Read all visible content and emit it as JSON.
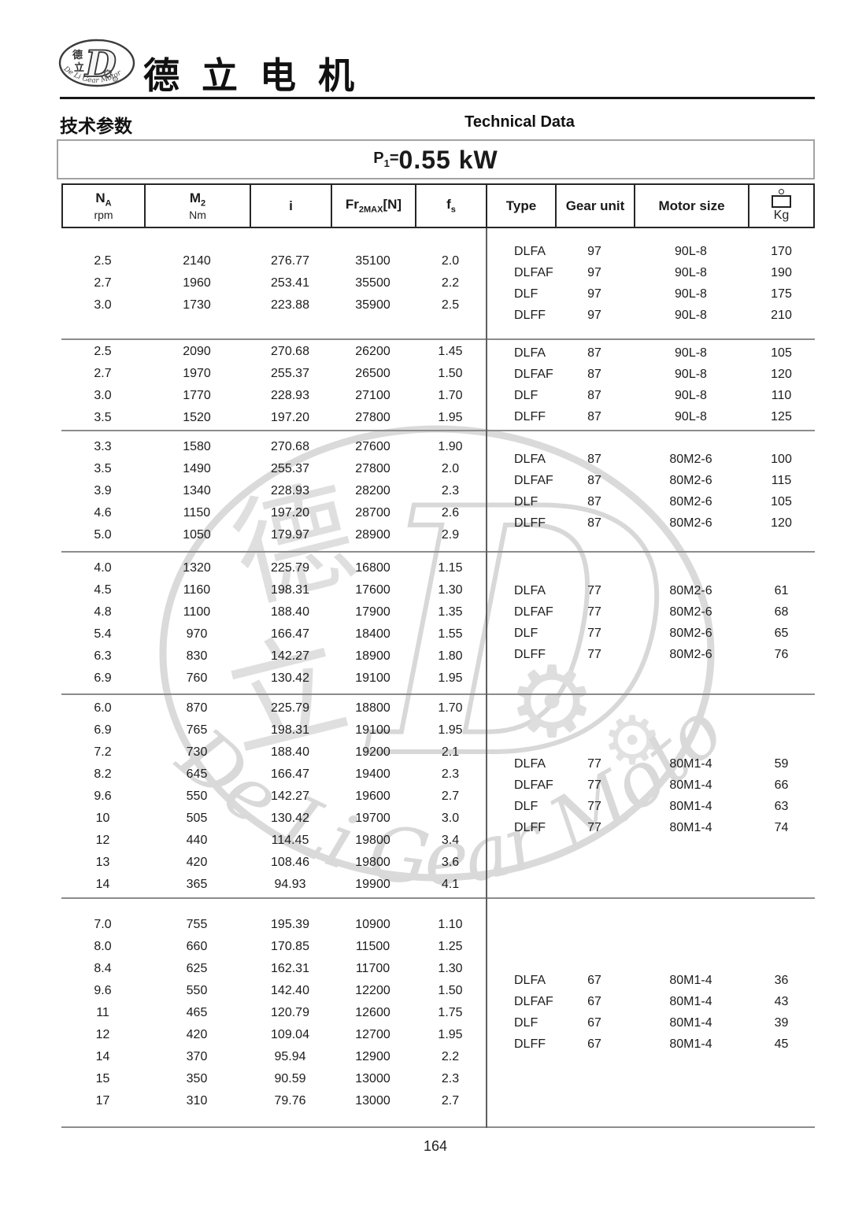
{
  "header": {
    "brand": "德立电机",
    "section_title_zh": "技术参数",
    "section_title_en": "Technical Data",
    "power": {
      "p": "P",
      "sub": "1",
      "eq": "=",
      "value": "0.55 kW"
    }
  },
  "logo": {
    "char_top": "德",
    "char_bottom": "立",
    "letter": "D",
    "gear_icon": "⚙",
    "arc_text": "De Li Gear Motor"
  },
  "watermark": {
    "char_top": "德",
    "char_bottom": "立",
    "letter": "D",
    "gear_icon": "⚙",
    "arc_text": "De Li Gear Motor"
  },
  "table": {
    "columns": [
      {
        "main": "N",
        "sub": "A",
        "unit": "rpm"
      },
      {
        "main": "M",
        "sub": "2",
        "unit": "Nm"
      },
      {
        "main": "i"
      },
      {
        "main": "Fr",
        "sub": "2MAX",
        "tail": "[N]"
      },
      {
        "main": "f",
        "sub": "s"
      },
      {
        "label": "Type"
      },
      {
        "label": "Gear unit"
      },
      {
        "label": "Motor size"
      },
      {
        "unit_label": "Kg"
      }
    ],
    "groups": [
      {
        "left": [
          [
            "2.5",
            "2140",
            "276.77",
            "35100",
            "2.0"
          ],
          [
            "2.7",
            "1960",
            "253.41",
            "35500",
            "2.2"
          ],
          [
            "3.0",
            "1730",
            "223.88",
            "35900",
            "2.5"
          ]
        ],
        "right": [
          [
            "DLFA",
            "97",
            "90L-8",
            "170"
          ],
          [
            "DLFAF",
            "97",
            "90L-8",
            "190"
          ],
          [
            "DLF",
            "97",
            "90L-8",
            "175"
          ],
          [
            "DLFF",
            "97",
            "90L-8",
            "210"
          ]
        ]
      },
      {
        "left": [
          [
            "2.5",
            "2090",
            "270.68",
            "26200",
            "1.45"
          ],
          [
            "2.7",
            "1970",
            "255.37",
            "26500",
            "1.50"
          ],
          [
            "3.0",
            "1770",
            "228.93",
            "27100",
            "1.70"
          ],
          [
            "3.5",
            "1520",
            "197.20",
            "27800",
            "1.95"
          ]
        ],
        "right": [
          [
            "DLFA",
            "87",
            "90L-8",
            "105"
          ],
          [
            "DLFAF",
            "87",
            "90L-8",
            "120"
          ],
          [
            "DLF",
            "87",
            "90L-8",
            "110"
          ],
          [
            "DLFF",
            "87",
            "90L-8",
            "125"
          ]
        ]
      },
      {
        "left": [
          [
            "3.3",
            "1580",
            "270.68",
            "27600",
            "1.90"
          ],
          [
            "3.5",
            "1490",
            "255.37",
            "27800",
            "2.0"
          ],
          [
            "3.9",
            "1340",
            "228.93",
            "28200",
            "2.3"
          ],
          [
            "4.6",
            "1150",
            "197.20",
            "28700",
            "2.6"
          ],
          [
            "5.0",
            "1050",
            "179.97",
            "28900",
            "2.9"
          ]
        ],
        "right": [
          [
            "DLFA",
            "87",
            "80M2-6",
            "100"
          ],
          [
            "DLFAF",
            "87",
            "80M2-6",
            "115"
          ],
          [
            "DLF",
            "87",
            "80M2-6",
            "105"
          ],
          [
            "DLFF",
            "87",
            "80M2-6",
            "120"
          ]
        ]
      },
      {
        "left": [
          [
            "4.0",
            "1320",
            "225.79",
            "16800",
            "1.15"
          ],
          [
            "4.5",
            "1160",
            "198.31",
            "17600",
            "1.30"
          ],
          [
            "4.8",
            "1100",
            "188.40",
            "17900",
            "1.35"
          ],
          [
            "5.4",
            "970",
            "166.47",
            "18400",
            "1.55"
          ],
          [
            "6.3",
            "830",
            "142.27",
            "18900",
            "1.80"
          ],
          [
            "6.9",
            "760",
            "130.42",
            "19100",
            "1.95"
          ]
        ],
        "right": [
          [
            "DLFA",
            "77",
            "80M2-6",
            "61"
          ],
          [
            "DLFAF",
            "77",
            "80M2-6",
            "68"
          ],
          [
            "DLF",
            "77",
            "80M2-6",
            "65"
          ],
          [
            "DLFF",
            "77",
            "80M2-6",
            "76"
          ]
        ]
      },
      {
        "left": [
          [
            "6.0",
            "870",
            "225.79",
            "18800",
            "1.70"
          ],
          [
            "6.9",
            "765",
            "198.31",
            "19100",
            "1.95"
          ],
          [
            "7.2",
            "730",
            "188.40",
            "19200",
            "2.1"
          ],
          [
            "8.2",
            "645",
            "166.47",
            "19400",
            "2.3"
          ],
          [
            "9.6",
            "550",
            "142.27",
            "19600",
            "2.7"
          ],
          [
            "10",
            "505",
            "130.42",
            "19700",
            "3.0"
          ],
          [
            "12",
            "440",
            "114.45",
            "19800",
            "3.4"
          ],
          [
            "13",
            "420",
            "108.46",
            "19800",
            "3.6"
          ],
          [
            "14",
            "365",
            "94.93",
            "19900",
            "4.1"
          ]
        ],
        "right": [
          [
            "DLFA",
            "77",
            "80M1-4",
            "59"
          ],
          [
            "DLFAF",
            "77",
            "80M1-4",
            "66"
          ],
          [
            "DLF",
            "77",
            "80M1-4",
            "63"
          ],
          [
            "DLFF",
            "77",
            "80M1-4",
            "74"
          ]
        ]
      },
      {
        "left": [
          [
            "7.0",
            "755",
            "195.39",
            "10900",
            "1.10"
          ],
          [
            "8.0",
            "660",
            "170.85",
            "11500",
            "1.25"
          ],
          [
            "8.4",
            "625",
            "162.31",
            "11700",
            "1.30"
          ],
          [
            "9.6",
            "550",
            "142.40",
            "12200",
            "1.50"
          ],
          [
            "11",
            "465",
            "120.79",
            "12600",
            "1.75"
          ],
          [
            "12",
            "420",
            "109.04",
            "12700",
            "1.95"
          ],
          [
            "14",
            "370",
            "95.94",
            "12900",
            "2.2"
          ],
          [
            "15",
            "350",
            "90.59",
            "13000",
            "2.3"
          ],
          [
            "17",
            "310",
            "79.76",
            "13000",
            "2.7"
          ]
        ],
        "right": [
          [
            "DLFA",
            "67",
            "80M1-4",
            "36"
          ],
          [
            "DLFAF",
            "67",
            "80M1-4",
            "43"
          ],
          [
            "DLF",
            "67",
            "80M1-4",
            "39"
          ],
          [
            "DLFF",
            "67",
            "80M1-4",
            "45"
          ]
        ]
      }
    ]
  },
  "footer": {
    "page_number": "164"
  }
}
